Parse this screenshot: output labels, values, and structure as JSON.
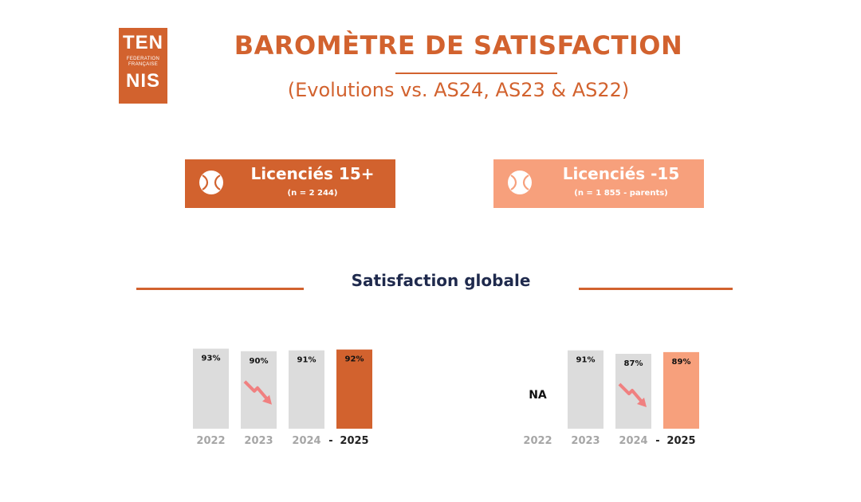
{
  "logo": {
    "top": "TEN",
    "line1": "FEDERATION",
    "line2": "FRANÇAISE",
    "bottom": "NIS",
    "color": "#d2622e"
  },
  "header": {
    "title": "BAROMÈTRE DE SATISFACTION",
    "subtitle": "(Evolutions vs. AS24, AS23 & AS22)"
  },
  "groups": [
    {
      "label": "Licenciés 15+",
      "note": "(n = 2 244)",
      "color": "#d2622e",
      "icon": "tennis-ball-icon"
    },
    {
      "label": "Licenciés -15",
      "note": "(n = 1 855 - parents)",
      "color": "#f7a07c",
      "icon": "tennis-ball-icon"
    }
  ],
  "section": {
    "title": "Satisfaction globale",
    "title_color": "#1f2a4d"
  },
  "colors": {
    "bar_grey": "#dcdcdc",
    "highlight_15plus": "#d2622e",
    "highlight_under15": "#f7a07c",
    "arrow": "#f08080",
    "axis_grey": "#a6a6a6",
    "axis_bold": "#222222"
  },
  "chart_data": [
    {
      "type": "bar",
      "title": "Licenciés 15+",
      "categories": [
        "2022",
        "2023",
        "2024",
        "2025"
      ],
      "values": [
        93,
        90,
        91,
        92
      ],
      "value_labels": [
        "93%",
        "90%",
        "91%",
        "92%"
      ],
      "highlight": "2025",
      "separator": "-",
      "decline_arrows": [
        "2023"
      ],
      "ylim": [
        0,
        100
      ]
    },
    {
      "type": "bar",
      "title": "Licenciés -15",
      "categories": [
        "2022",
        "2023",
        "2024",
        "2025"
      ],
      "values": [
        null,
        91,
        87,
        89
      ],
      "value_labels": [
        "NA",
        "91%",
        "87%",
        "89%"
      ],
      "highlight": "2025",
      "separator": "-",
      "decline_arrows": [
        "2024"
      ],
      "ylim": [
        0,
        100
      ]
    }
  ]
}
